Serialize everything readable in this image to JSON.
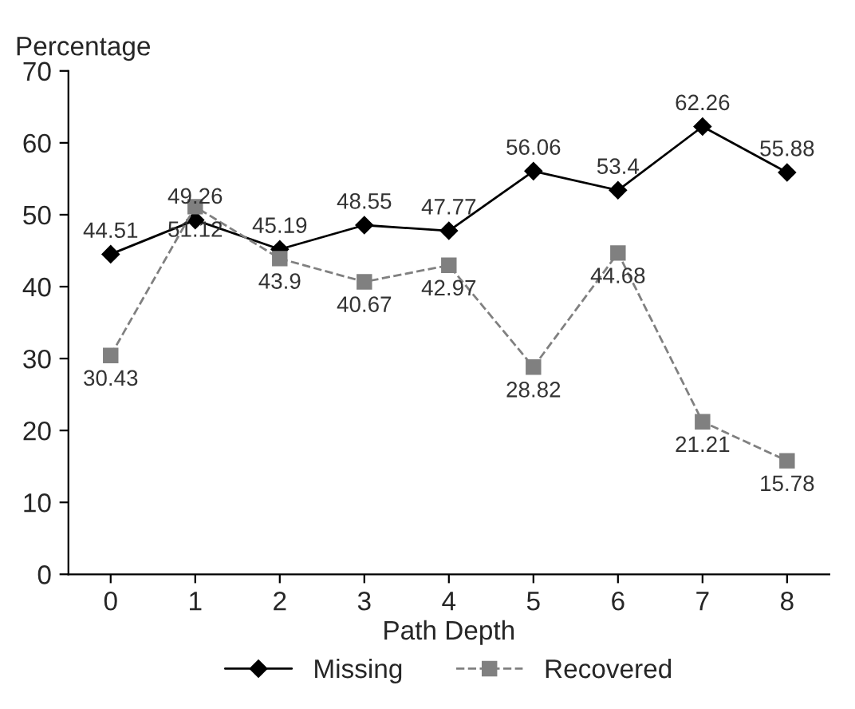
{
  "chart_data": {
    "type": "line",
    "ylabel": "Percentage",
    "xlabel": "Path Depth",
    "categories": [
      "0",
      "1",
      "2",
      "3",
      "4",
      "5",
      "6",
      "7",
      "8"
    ],
    "series": [
      {
        "name": "Missing",
        "color": "#000000",
        "marker": "diamond",
        "line_style": "solid",
        "values": [
          44.51,
          49.26,
          45.19,
          48.55,
          47.77,
          56.06,
          53.4,
          62.26,
          55.88
        ]
      },
      {
        "name": "Recovered",
        "color": "#808080",
        "marker": "square",
        "line_style": "dashed",
        "values": [
          30.43,
          51.12,
          43.9,
          40.67,
          42.97,
          28.82,
          44.68,
          21.21,
          15.78
        ]
      }
    ],
    "ylim": [
      0,
      70
    ],
    "yticks": [
      0,
      10,
      20,
      30,
      40,
      50,
      60,
      70
    ],
    "grid": false,
    "legend": "bottom",
    "data_labels": true
  }
}
